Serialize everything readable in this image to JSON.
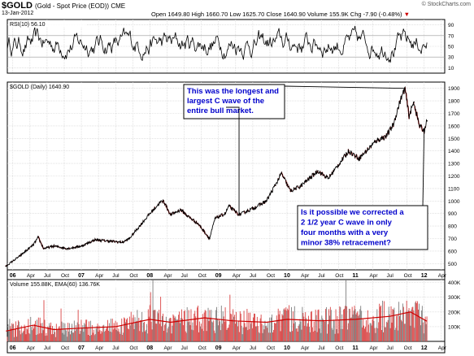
{
  "header": {
    "symbol": "$GOLD",
    "description": "(Gold - Spot Price (EOD)) CME",
    "date": "13-Jan-2012",
    "ohlc": "Open 1649.80 High 1660.70 Low 1625.70 Close 1640.90 Volume 155.9K Chg -7.90 (-0.48%)",
    "change_marker": "▼",
    "credit": "© StockCharts.com"
  },
  "colors": {
    "price_line": "#000000",
    "price_dip": "#cc0000",
    "grid": "#d0d0d0",
    "volume_bar": "#d94545",
    "volume_alt": "#7f7f7f",
    "volume_ema": "#cc0000",
    "callout_border": "#000000",
    "callout_text": "#0000cc"
  },
  "annotations": [
    {
      "id": "top",
      "lines": [
        "This was the longest and",
        "largest C wave of the",
        "entire bull market."
      ]
    },
    {
      "id": "bottom",
      "lines": [
        "Is it possible we corrected a",
        "2 1/2 year C wave in only",
        "four months with a very",
        "minor 38% retracement?"
      ]
    }
  ],
  "chart_data": [
    {
      "type": "line",
      "panel": "rsi",
      "legend": "RSI(10) 56.10",
      "ylim": [
        0,
        100
      ],
      "yticks": [
        10,
        30,
        50,
        70,
        90
      ],
      "y_value": 56.1
    },
    {
      "type": "line",
      "panel": "price",
      "legend": "$GOLD (Daily) 1640.90",
      "ylim": [
        450,
        1950
      ],
      "yticks": [
        500,
        600,
        700,
        800,
        900,
        1000,
        1100,
        1200,
        1300,
        1400,
        1500,
        1600,
        1700,
        1800,
        1900
      ],
      "x": [
        2005.9,
        2006.1,
        2006.3,
        2006.37,
        2006.45,
        2006.6,
        2006.8,
        2007.0,
        2007.2,
        2007.4,
        2007.6,
        2007.7,
        2007.85,
        2008.0,
        2008.15,
        2008.2,
        2008.3,
        2008.45,
        2008.55,
        2008.7,
        2008.8,
        2008.87,
        2008.95,
        2009.1,
        2009.15,
        2009.3,
        2009.5,
        2009.7,
        2009.92,
        2010.05,
        2010.2,
        2010.45,
        2010.6,
        2010.9,
        2011.05,
        2011.3,
        2011.45,
        2011.55,
        2011.65,
        2011.72,
        2011.78,
        2011.85,
        2011.93,
        2012.0,
        2012.04
      ],
      "y": [
        480,
        560,
        650,
        710,
        620,
        640,
        620,
        640,
        690,
        680,
        670,
        700,
        800,
        900,
        990,
        1000,
        890,
        930,
        880,
        820,
        750,
        700,
        860,
        900,
        960,
        890,
        940,
        1000,
        1220,
        1080,
        1120,
        1240,
        1180,
        1400,
        1340,
        1480,
        1520,
        1610,
        1800,
        1900,
        1680,
        1790,
        1600,
        1560,
        1640
      ]
    },
    {
      "type": "bar",
      "panel": "volume",
      "legend": "Volume 155.88K, EMA(60) 136.76K",
      "ylim": [
        0,
        420000
      ],
      "yticks": [
        100000,
        200000,
        300000,
        400000
      ],
      "ytick_labels": [
        "100K",
        "200K",
        "300K",
        "400K"
      ],
      "ema_x": [
        2005.9,
        2006.3,
        2006.6,
        2007.0,
        2007.5,
        2008.0,
        2008.3,
        2008.8,
        2009.2,
        2009.7,
        2010.0,
        2010.5,
        2011.0,
        2011.5,
        2011.8,
        2012.04
      ],
      "ema_y": [
        70000,
        110000,
        80000,
        90000,
        100000,
        150000,
        130000,
        160000,
        140000,
        130000,
        150000,
        140000,
        150000,
        170000,
        200000,
        137000
      ]
    }
  ],
  "x_axis": {
    "labels": [
      "06",
      "Apr",
      "Jul",
      "Oct",
      "07",
      "Apr",
      "Jul",
      "Oct",
      "08",
      "Apr",
      "Jul",
      "Oct",
      "09",
      "Apr",
      "Jul",
      "Oct",
      "10",
      "Apr",
      "Jul",
      "Oct",
      "11",
      "Apr",
      "Jul",
      "Oct",
      "12",
      "Apr"
    ],
    "positions": [
      2006.0,
      2006.25,
      2006.5,
      2006.75,
      2007.0,
      2007.25,
      2007.5,
      2007.75,
      2008.0,
      2008.25,
      2008.5,
      2008.75,
      2009.0,
      2009.25,
      2009.5,
      2009.75,
      2010.0,
      2010.25,
      2010.5,
      2010.75,
      2011.0,
      2011.25,
      2011.5,
      2011.75,
      2012.0,
      2012.25
    ],
    "range": [
      2005.92,
      2012.3
    ]
  }
}
